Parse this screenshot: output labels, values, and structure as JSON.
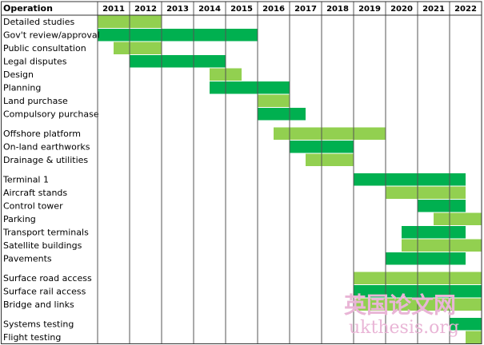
{
  "chart_data": {
    "type": "gantt",
    "header": "Operation",
    "years": [
      "2011",
      "2012",
      "2013",
      "2014",
      "2015",
      "2016",
      "2017",
      "2018",
      "2019",
      "2020",
      "2021",
      "2022"
    ],
    "xlim": [
      2011,
      2023
    ],
    "groups": [
      {
        "tasks": [
          {
            "name": "Detailed studies",
            "start": 2011,
            "end": 2013,
            "color": "#92d050"
          },
          {
            "name": "Gov't review/approval",
            "start": 2011,
            "end": 2016,
            "color": "#00b050"
          },
          {
            "name": "Public consultation",
            "start": 2011.5,
            "end": 2013,
            "color": "#92d050"
          },
          {
            "name": "Legal disputes",
            "start": 2012,
            "end": 2015,
            "color": "#00b050"
          },
          {
            "name": "Design",
            "start": 2014.5,
            "end": 2015.5,
            "color": "#92d050"
          },
          {
            "name": "Planning",
            "start": 2014.5,
            "end": 2017,
            "color": "#00b050"
          },
          {
            "name": "Land purchase",
            "start": 2016,
            "end": 2017,
            "color": "#92d050"
          },
          {
            "name": "Compulsory purchase",
            "start": 2016,
            "end": 2017.5,
            "color": "#00b050"
          }
        ]
      },
      {
        "tasks": [
          {
            "name": "Offshore platform",
            "start": 2016.5,
            "end": 2020,
            "color": "#92d050"
          },
          {
            "name": "On-land earthworks",
            "start": 2017,
            "end": 2019,
            "color": "#00b050"
          },
          {
            "name": "Drainage & utilities",
            "start": 2017.5,
            "end": 2019,
            "color": "#92d050"
          }
        ]
      },
      {
        "tasks": [
          {
            "name": "Terminal 1",
            "start": 2019,
            "end": 2022.5,
            "color": "#00b050"
          },
          {
            "name": "Aircraft stands",
            "start": 2020,
            "end": 2022.5,
            "color": "#92d050"
          },
          {
            "name": "Control tower",
            "start": 2021,
            "end": 2022.5,
            "color": "#00b050"
          },
          {
            "name": "Parking",
            "start": 2021.5,
            "end": 2023,
            "color": "#92d050"
          },
          {
            "name": "Transport terminals",
            "start": 2020.5,
            "end": 2022.5,
            "color": "#00b050"
          },
          {
            "name": "Satellite buildings",
            "start": 2020.5,
            "end": 2023,
            "color": "#92d050"
          },
          {
            "name": "Pavements",
            "start": 2020,
            "end": 2022.5,
            "color": "#00b050"
          }
        ]
      },
      {
        "tasks": [
          {
            "name": "Surface road access",
            "start": 2019,
            "end": 2023,
            "color": "#92d050"
          },
          {
            "name": "Surface rail access",
            "start": 2019,
            "end": 2023,
            "color": "#00b050"
          },
          {
            "name": "Bridge and links",
            "start": 2019,
            "end": 2023,
            "color": "#92d050"
          }
        ]
      },
      {
        "tasks": [
          {
            "name": "Systems testing",
            "start": 2022,
            "end": 2023,
            "color": "#00b050"
          },
          {
            "name": "Flight testing",
            "start": 2022.5,
            "end": 2023,
            "color": "#92d050"
          }
        ]
      }
    ]
  },
  "watermark": {
    "cn": "英国论文网",
    "url": "ukthesis.org"
  }
}
